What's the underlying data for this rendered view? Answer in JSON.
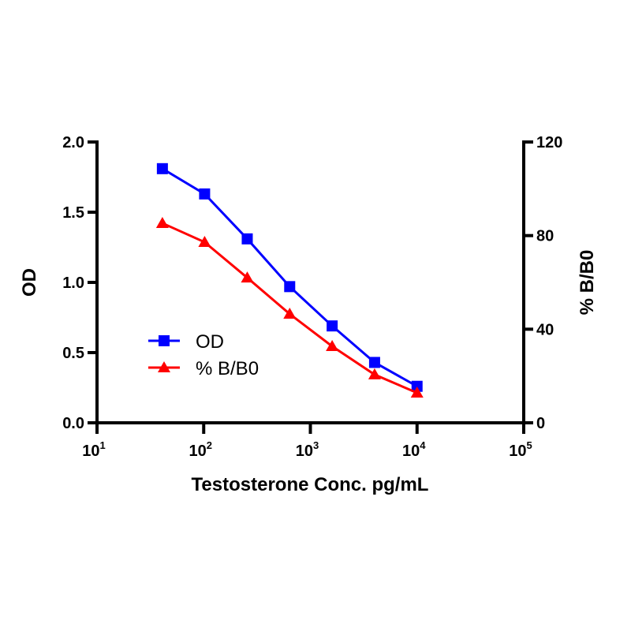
{
  "chart_data": {
    "type": "line",
    "title": "",
    "xlabel": "Testosterone Conc. pg/mL",
    "ylabel": "OD",
    "y2label": "% B/B0",
    "xscale": "log",
    "xlim": [
      10,
      100000
    ],
    "ylim": [
      0,
      2.0
    ],
    "y2lim": [
      0,
      120
    ],
    "x_ticks": [
      {
        "base": "10",
        "exp": "1"
      },
      {
        "base": "10",
        "exp": "2"
      },
      {
        "base": "10",
        "exp": "3"
      },
      {
        "base": "10",
        "exp": "4"
      },
      {
        "base": "10",
        "exp": "5"
      }
    ],
    "y_ticks": [
      "0.0",
      "0.5",
      "1.0",
      "1.5",
      "2.0"
    ],
    "y2_ticks": [
      "0",
      "40",
      "80",
      "120"
    ],
    "grid": false,
    "legend_position": "lower-left",
    "x": [
      41,
      102,
      256,
      640,
      1600,
      4000,
      10000
    ],
    "series": [
      {
        "name": "OD",
        "axis": "left",
        "marker": "square",
        "color": "#0000ff",
        "values": [
          1.81,
          1.63,
          1.31,
          0.97,
          0.69,
          0.43,
          0.26
        ]
      },
      {
        "name": "% B/B0",
        "axis": "right",
        "marker": "triangle",
        "color": "#ff0000",
        "values": [
          85.3,
          77.2,
          62.0,
          46.5,
          32.7,
          20.6,
          12.8
        ]
      }
    ]
  }
}
